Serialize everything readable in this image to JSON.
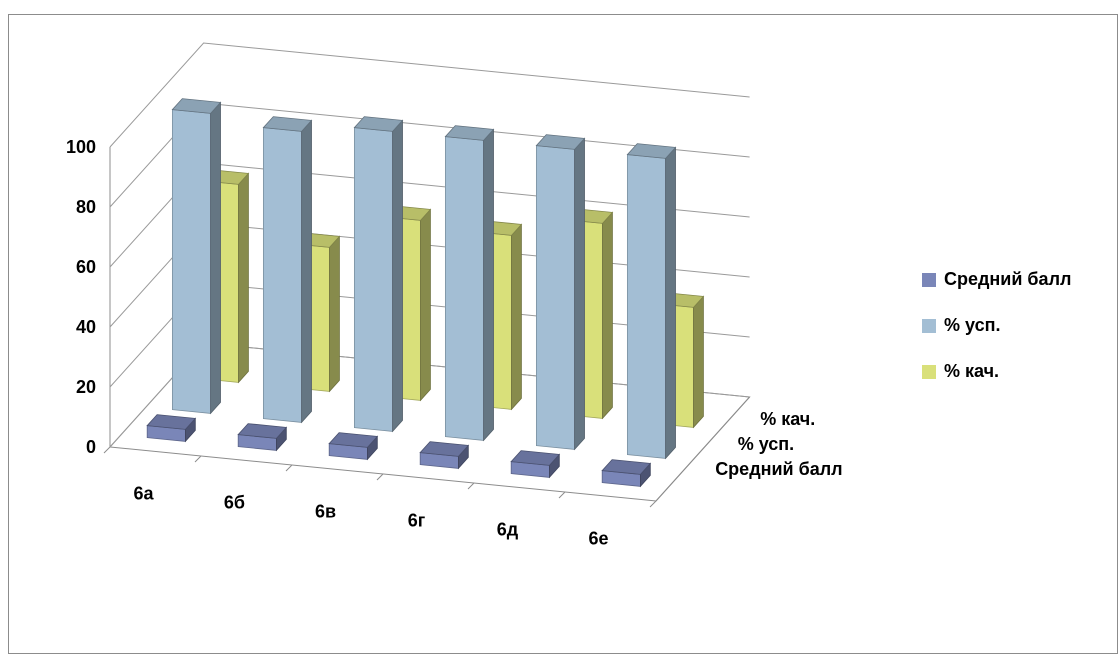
{
  "chart_data": {
    "type": "bar",
    "subtype": "3d-clustered-columns",
    "categories": [
      "6а",
      "6б",
      "6в",
      "6г",
      "6д",
      "6е"
    ],
    "series": [
      {
        "name": "Средний балл",
        "values": [
          4,
          4,
          4,
          4,
          4,
          4
        ],
        "color": "#7a86b8"
      },
      {
        "name": "%   усп.",
        "values": [
          100,
          97,
          100,
          100,
          100,
          100
        ],
        "color": "#a3bed4"
      },
      {
        "name": "% кач.",
        "values": [
          66,
          48,
          60,
          58,
          65,
          40
        ],
        "color": "#d9e07a"
      }
    ],
    "y_ticks": [
      "100",
      "80",
      "60",
      "40",
      "20",
      "0"
    ],
    "ylim": [
      0,
      100
    ],
    "depth_labels": [
      "% кач.",
      "%   усп.",
      "Средний балл"
    ],
    "grid": true,
    "legend_position": "right",
    "title": "",
    "xlabel": "",
    "ylabel": ""
  }
}
